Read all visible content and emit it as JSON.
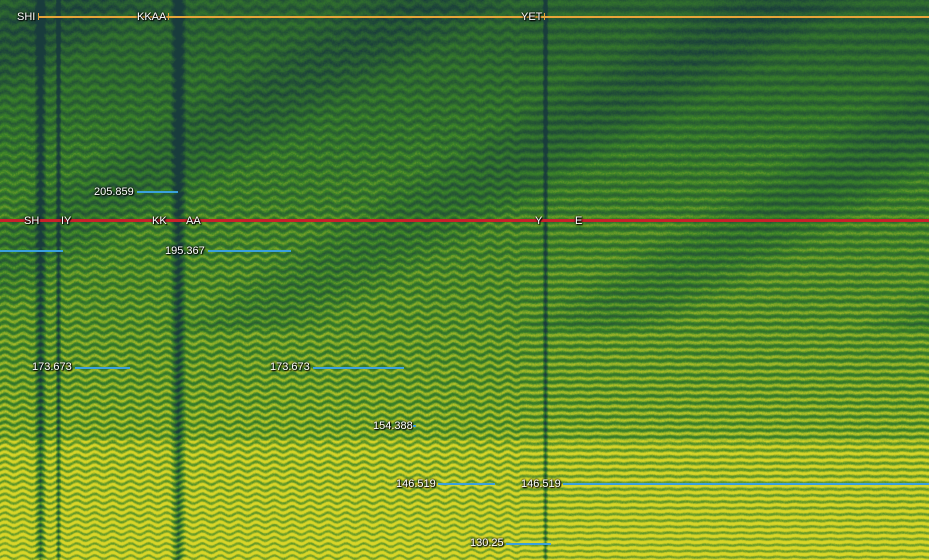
{
  "colors": {
    "word_track": "#e8a33a",
    "phone_track": "#c8202a",
    "pitch_track": "#3aa0dc",
    "spectrogram_low": "#1f4f45",
    "spectrogram_mid": "#3a8a2a",
    "spectrogram_high": "#d8d428"
  },
  "words": [
    {
      "label": "SHI"
    },
    {
      "label": "KKAA"
    },
    {
      "label": "YET"
    }
  ],
  "phones": [
    {
      "label": "SH"
    },
    {
      "label": "IY"
    },
    {
      "label": "KK"
    },
    {
      "label": "AA"
    },
    {
      "label": "Y"
    },
    {
      "label": "E"
    }
  ],
  "pitch_marks": [
    {
      "label": "205.859"
    },
    {
      "label": "195.367"
    },
    {
      "label": "173.673"
    },
    {
      "label": "173.673"
    },
    {
      "label": "154.388"
    },
    {
      "label": "146.519"
    },
    {
      "label": "146.519"
    },
    {
      "label": "130.25"
    }
  ]
}
